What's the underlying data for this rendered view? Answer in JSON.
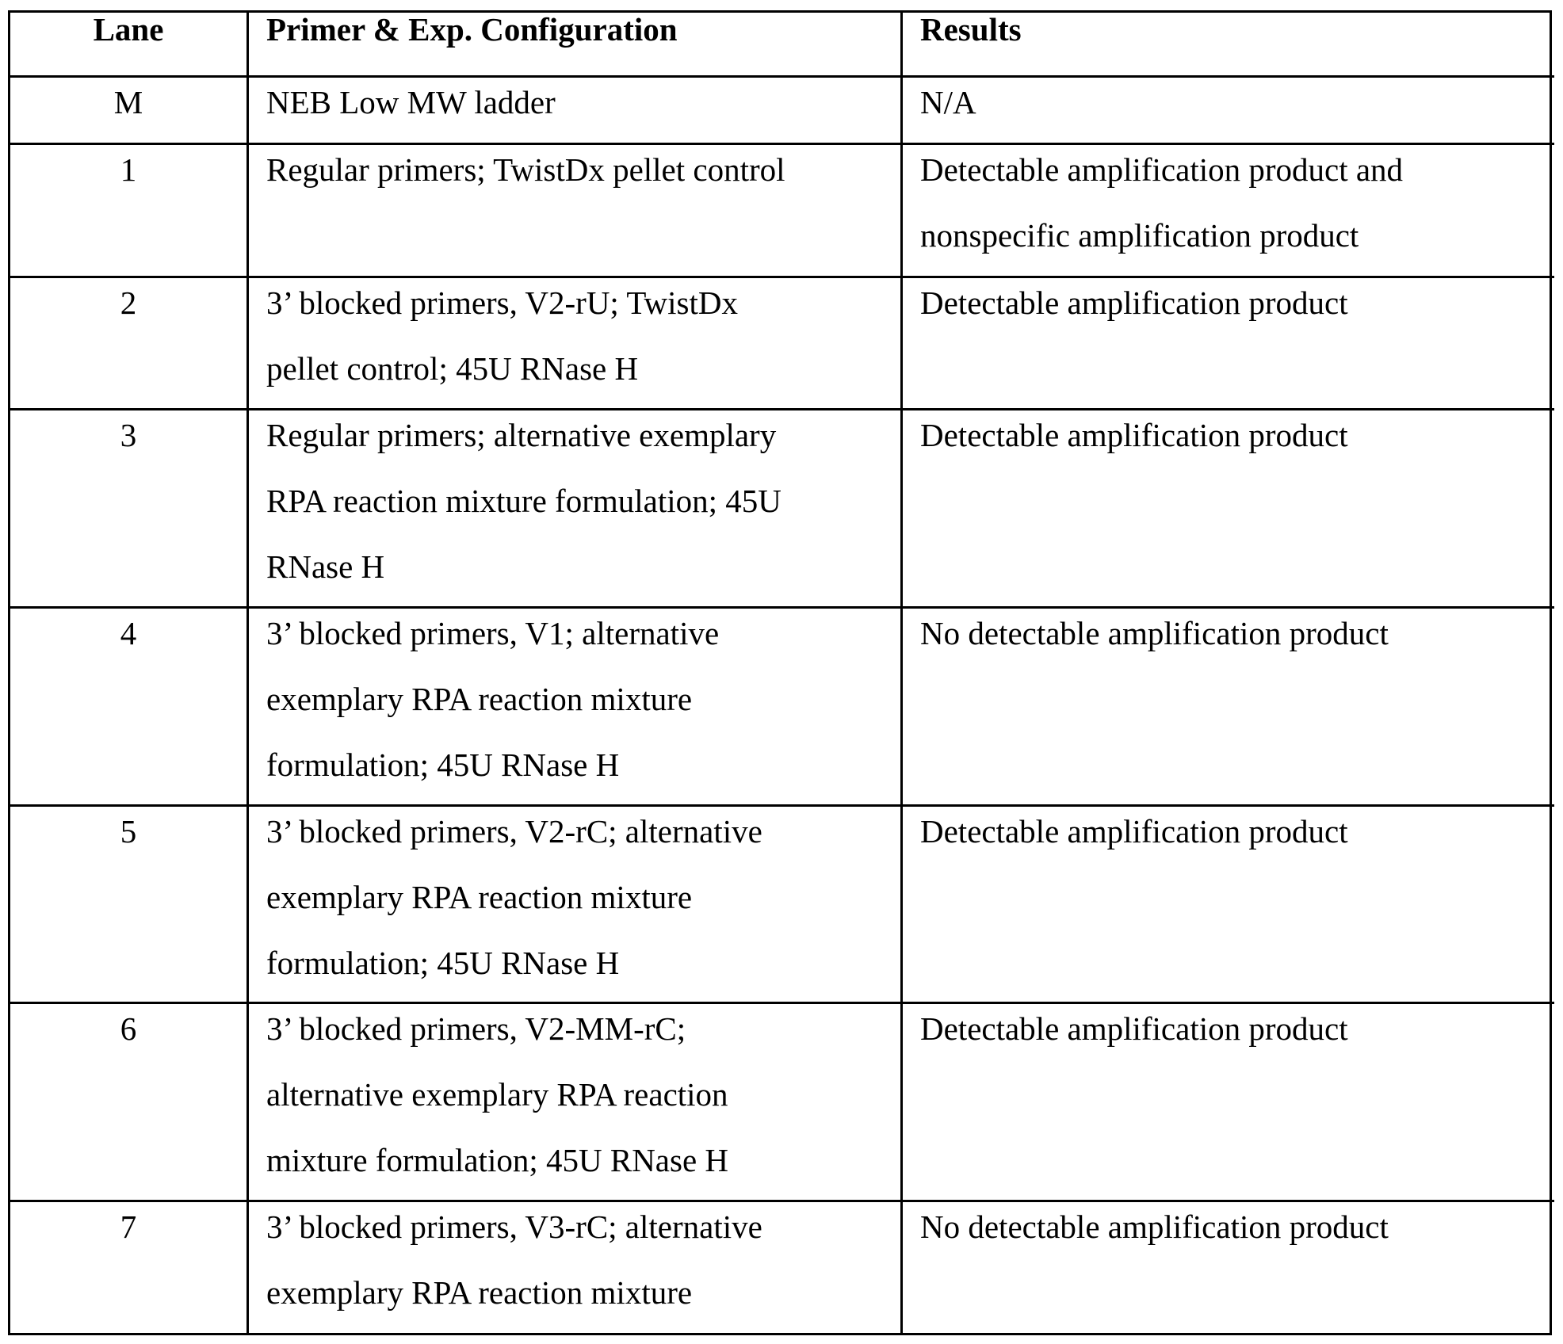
{
  "headers": {
    "lane": "Lane",
    "config": "Primer & Exp. Configuration",
    "results": "Results"
  },
  "rows": [
    {
      "lane": "M",
      "config": [
        "NEB Low MW ladder"
      ],
      "results": [
        "N/A"
      ]
    },
    {
      "lane": "1",
      "config": [
        "Regular primers; TwistDx pellet control"
      ],
      "results": [
        "Detectable amplification product and",
        "nonspecific amplification product"
      ]
    },
    {
      "lane": "2",
      "config": [
        "3’ blocked primers, V2-rU; TwistDx",
        "pellet control; 45U RNase H"
      ],
      "results": [
        "Detectable amplification product"
      ]
    },
    {
      "lane": "3",
      "config": [
        "Regular primers; alternative exemplary",
        "RPA reaction mixture formulation; 45U",
        "RNase H"
      ],
      "results": [
        "Detectable amplification product"
      ]
    },
    {
      "lane": "4",
      "config": [
        "3’ blocked primers, V1; alternative",
        "exemplary RPA reaction mixture",
        "formulation; 45U RNase H"
      ],
      "results": [
        "No detectable amplification product"
      ]
    },
    {
      "lane": "5",
      "config": [
        "3’ blocked primers, V2-rC; alternative",
        "exemplary RPA reaction mixture",
        "formulation; 45U RNase H"
      ],
      "results": [
        "Detectable amplification product"
      ]
    },
    {
      "lane": "6",
      "config": [
        "3’ blocked primers, V2-MM-rC;",
        "alternative exemplary RPA reaction",
        "mixture formulation; 45U RNase H"
      ],
      "results": [
        "Detectable amplification product"
      ]
    },
    {
      "lane": "7",
      "config": [
        "3’ blocked primers, V3-rC; alternative",
        "exemplary RPA reaction mixture"
      ],
      "results": [
        "No detectable amplification product"
      ]
    }
  ]
}
